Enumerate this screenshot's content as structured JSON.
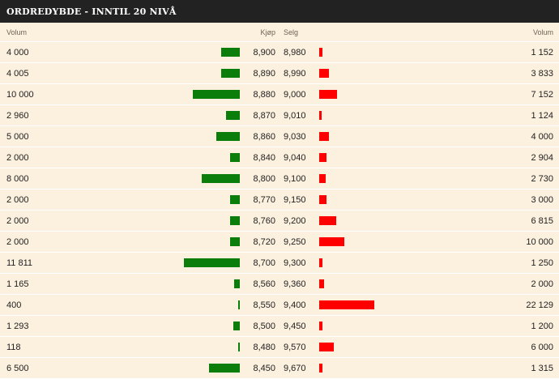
{
  "title": "ORDREDYBDE - INNTIL 20 NIVÅ",
  "headers": {
    "buy_volume": "Volum",
    "buy_price": "Kjøp",
    "sell_price": "Selg",
    "sell_volume": "Volum"
  },
  "colors": {
    "buy": "#0a7d0a",
    "sell": "#ff0000",
    "title_bg": "#222222",
    "row_bg": "#fcf0de"
  },
  "rows": [
    {
      "buy_volume": "4 000",
      "buy_price": "8,900",
      "sell_price": "8,980",
      "sell_volume": "1 152"
    },
    {
      "buy_volume": "4 005",
      "buy_price": "8,890",
      "sell_price": "8,990",
      "sell_volume": "3 833"
    },
    {
      "buy_volume": "10 000",
      "buy_price": "8,880",
      "sell_price": "9,000",
      "sell_volume": "7 152"
    },
    {
      "buy_volume": "2 960",
      "buy_price": "8,870",
      "sell_price": "9,010",
      "sell_volume": "1 124"
    },
    {
      "buy_volume": "5 000",
      "buy_price": "8,860",
      "sell_price": "9,030",
      "sell_volume": "4 000"
    },
    {
      "buy_volume": "2 000",
      "buy_price": "8,840",
      "sell_price": "9,040",
      "sell_volume": "2 904"
    },
    {
      "buy_volume": "8 000",
      "buy_price": "8,800",
      "sell_price": "9,100",
      "sell_volume": "2 730"
    },
    {
      "buy_volume": "2 000",
      "buy_price": "8,770",
      "sell_price": "9,150",
      "sell_volume": "3 000"
    },
    {
      "buy_volume": "2 000",
      "buy_price": "8,760",
      "sell_price": "9,200",
      "sell_volume": "6 815"
    },
    {
      "buy_volume": "2 000",
      "buy_price": "8,720",
      "sell_price": "9,250",
      "sell_volume": "10 000"
    },
    {
      "buy_volume": "11 811",
      "buy_price": "8,700",
      "sell_price": "9,300",
      "sell_volume": "1 250"
    },
    {
      "buy_volume": "1 165",
      "buy_price": "8,560",
      "sell_price": "9,360",
      "sell_volume": "2 000"
    },
    {
      "buy_volume": "400",
      "buy_price": "8,550",
      "sell_price": "9,400",
      "sell_volume": "22 129"
    },
    {
      "buy_volume": "1 293",
      "buy_price": "8,500",
      "sell_price": "9,450",
      "sell_volume": "1 200"
    },
    {
      "buy_volume": "118",
      "buy_price": "8,480",
      "sell_price": "9,570",
      "sell_volume": "6 000"
    },
    {
      "buy_volume": "6 500",
      "buy_price": "8,450",
      "sell_price": "9,670",
      "sell_volume": "1 315"
    }
  ]
}
